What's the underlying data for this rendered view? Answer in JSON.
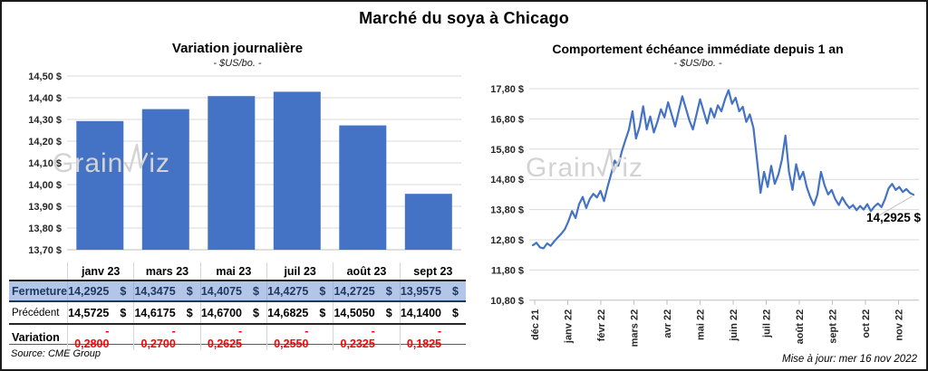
{
  "header": {
    "title": "Marché du soya à Chicago"
  },
  "watermark": {
    "prefix": "Grain",
    "suffix": "iz"
  },
  "left_panel": {
    "title": "Variation journalière",
    "subtitle": "- $US/bo. -"
  },
  "right_panel": {
    "title": "Comportement échéance immédiate depuis 1 an",
    "subtitle": "- $US/bo. -"
  },
  "table": {
    "columns": [
      "janv 23",
      "mars 23",
      "mai 23",
      "juil 23",
      "août 23",
      "sept 23"
    ],
    "rows": [
      {
        "label": "Fermeture",
        "style": "fermeture",
        "currency": "$",
        "values": [
          "14,2925",
          "14,3475",
          "14,4075",
          "14,4275",
          "14,2725",
          "13,9575"
        ]
      },
      {
        "label": "Précédent",
        "style": "precedent",
        "currency": "$",
        "values": [
          "14,5725",
          "14,6175",
          "14,6700",
          "14,6825",
          "14,5050",
          "14,1400"
        ]
      },
      {
        "label": "Variation",
        "style": "variation",
        "currency": "",
        "values": [
          "- 0,2800",
          "- 0,2700",
          "- 0,2625",
          "- 0,2550",
          "- 0,2325",
          "- 0,1825"
        ]
      }
    ]
  },
  "footer": {
    "source": "Source: CME Group",
    "updated": "Mise à jour: mer 16 nov 2022"
  },
  "colors": {
    "accent": "#4472C4",
    "fermeture_bg": "#B4C6E7",
    "fermeture_text": "#1F3864",
    "variation_text": "#FF0000",
    "grid": "#D9D9D9",
    "axis": "#BFBFBF",
    "watermark": "#D3D3D3"
  },
  "chart_data": [
    {
      "type": "bar",
      "title": "Variation journalière",
      "subtitle": "- $US/bo. -",
      "categories": [
        "janv 23",
        "mars 23",
        "mai 23",
        "juil 23",
        "août 23",
        "sept 23"
      ],
      "values": [
        14.2925,
        14.3475,
        14.4075,
        14.4275,
        14.2725,
        13.9575
      ],
      "ylim": [
        13.7,
        14.5
      ],
      "ytick_step": 0.1,
      "ytick_labels": [
        "14,50 $",
        "14,40 $",
        "14,30 $",
        "14,20 $",
        "14,10 $",
        "14,00 $",
        "13,90 $",
        "13,80 $",
        "13,70 $"
      ],
      "grid": true,
      "legend": "none",
      "bar_color": "#4472C4"
    },
    {
      "type": "line",
      "title": "Comportement échéance immédiate depuis 1 an",
      "subtitle": "- $US/bo. -",
      "x_labels": [
        "déc 21",
        "janv 22",
        "févr 22",
        "mars 22",
        "avr 22",
        "mai 22",
        "juin 22",
        "juil 22",
        "août 22",
        "sept 22",
        "oct 22",
        "nov 22"
      ],
      "ylim": [
        10.8,
        17.8
      ],
      "ytick_step": 1.0,
      "ytick_labels": [
        "17,80 $",
        "16,80 $",
        "15,80 $",
        "14,80 $",
        "13,80 $",
        "12,80 $",
        "11,80 $",
        "10,80 $"
      ],
      "grid": true,
      "legend": "none",
      "line_color": "#4472C4",
      "annotation": {
        "text": "14,2925 $",
        "value": 14.2925
      },
      "values": [
        12.62,
        12.7,
        12.55,
        12.52,
        12.68,
        12.6,
        12.75,
        12.88,
        13.0,
        13.15,
        13.42,
        13.75,
        13.52,
        13.98,
        14.22,
        13.85,
        14.15,
        14.32,
        14.2,
        14.42,
        14.08,
        14.55,
        14.98,
        15.42,
        15.25,
        15.72,
        16.1,
        16.45,
        17.05,
        16.15,
        16.55,
        17.22,
        16.45,
        16.88,
        16.35,
        16.7,
        17.12,
        16.85,
        17.35,
        16.95,
        16.55,
        17.05,
        17.55,
        17.15,
        16.75,
        16.45,
        16.95,
        17.45,
        17.05,
        16.65,
        17.15,
        16.85,
        17.25,
        17.05,
        17.45,
        17.75,
        17.3,
        17.5,
        17.05,
        17.2,
        16.7,
        16.95,
        16.5,
        15.45,
        14.35,
        15.05,
        14.55,
        15.25,
        14.65,
        14.95,
        15.45,
        16.25,
        15.05,
        14.45,
        15.3,
        14.8,
        15.05,
        14.55,
        14.2,
        13.95,
        14.3,
        15.05,
        14.6,
        14.3,
        14.45,
        14.15,
        13.95,
        14.2,
        14.0,
        13.85,
        13.95,
        13.78,
        13.92,
        13.8,
        13.98,
        13.75,
        13.9,
        14.0,
        13.88,
        14.15,
        14.5,
        14.65,
        14.45,
        14.55,
        14.38,
        14.48,
        14.35,
        14.2925
      ]
    }
  ]
}
